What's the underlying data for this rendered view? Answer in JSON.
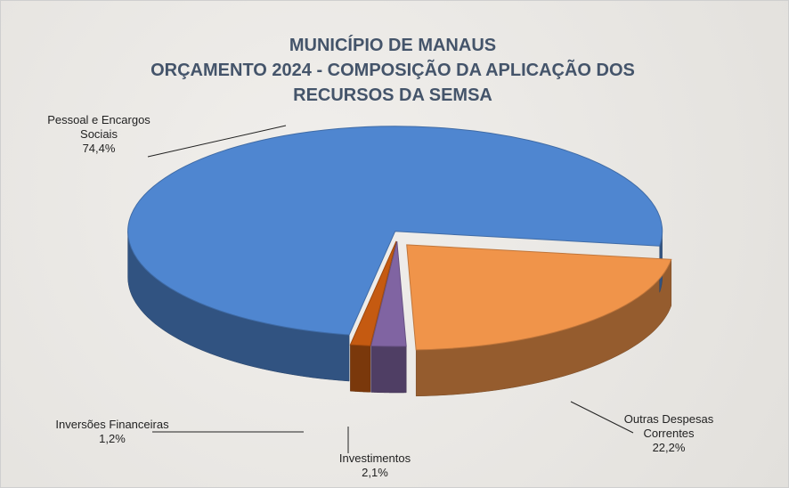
{
  "chart_data": {
    "type": "pie",
    "title": "MUNICÍPIO DE MANAUS",
    "subtitle": "ORÇAMENTO 2024  -  COMPOSIÇÃO DA APLICAÇÃO DOS RECURSOS DA SEMSA",
    "categories": [
      "Outras Despesas Correntes",
      "Investimentos",
      "Inversões Financeiras",
      "Pessoal e Encargos Sociais"
    ],
    "values": [
      22.2,
      2.1,
      1.2,
      74.4
    ],
    "value_labels": [
      "22,2%",
      "2,1%",
      "1,2%",
      "74,4%"
    ],
    "colors": [
      "#f0944a",
      "#8064a2",
      "#c55a11",
      "#4f86d0"
    ]
  }
}
